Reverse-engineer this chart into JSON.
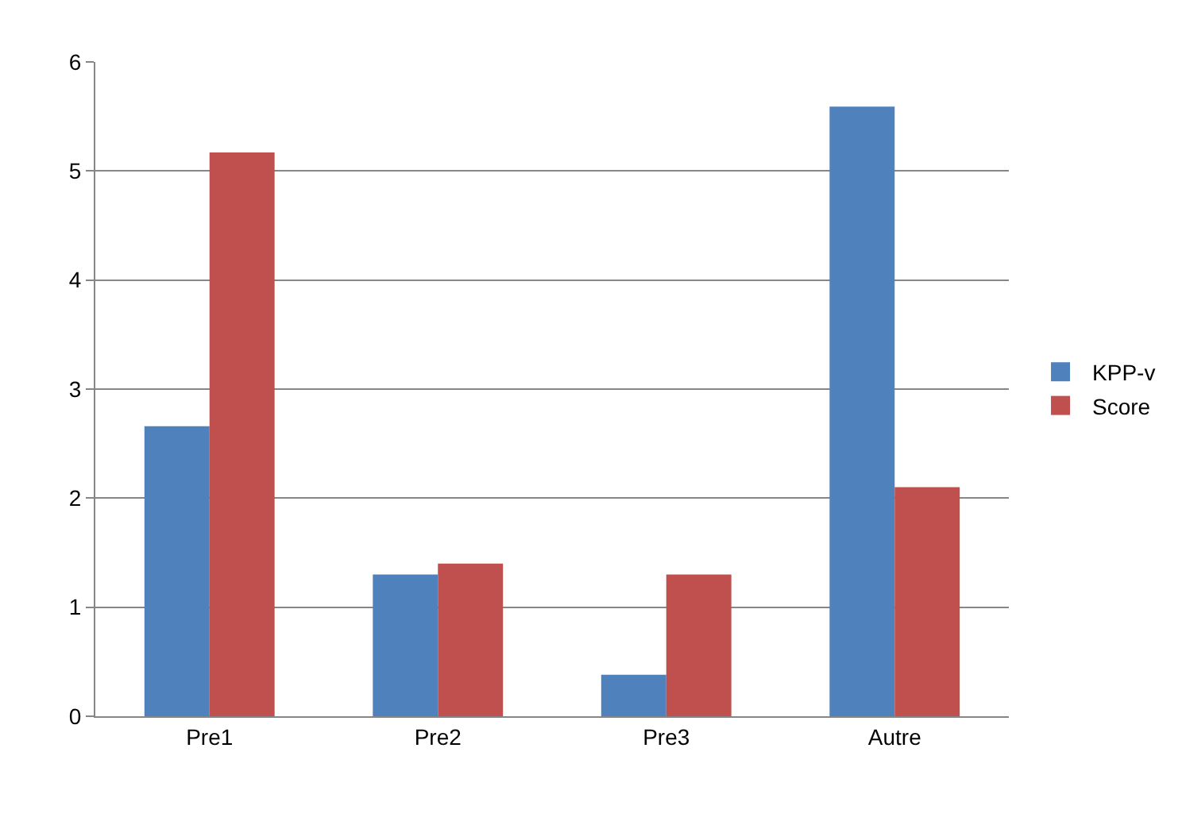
{
  "chart_data": {
    "type": "bar",
    "categories": [
      "Pre1",
      "Pre2",
      "Pre3",
      "Autre"
    ],
    "series": [
      {
        "name": "KPP-v",
        "color": "#4f81bd",
        "values": [
          2.66,
          1.3,
          0.38,
          5.59
        ]
      },
      {
        "name": "Score",
        "color": "#c0504d",
        "values": [
          5.17,
          1.4,
          1.3,
          2.1
        ]
      }
    ],
    "ylim": [
      0,
      6
    ],
    "yticks": [
      0,
      1,
      2,
      3,
      4,
      5,
      6
    ],
    "grid": "y",
    "legend": "right"
  }
}
